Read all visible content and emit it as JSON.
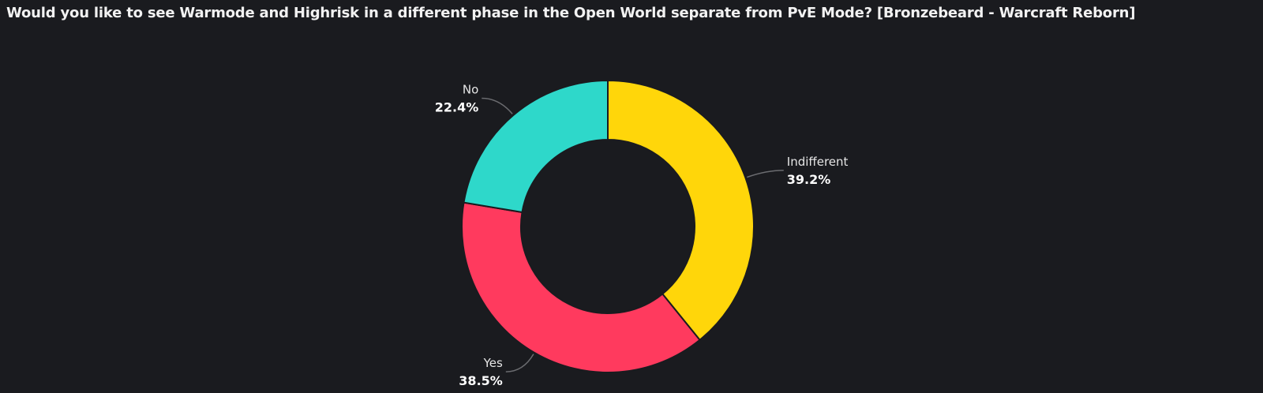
{
  "chart_data": {
    "type": "pie",
    "variant": "donut",
    "title": "Would you like to see Warmode and Highrisk in a different phase in the Open World separate from PvE Mode? [Bronzebeard - Warcraft Reborn]",
    "slices": [
      {
        "label": "Indifferent",
        "value": 39.2,
        "display": "39.2%",
        "color": "#FFD60A"
      },
      {
        "label": "Yes",
        "value": 38.5,
        "display": "38.5%",
        "color": "#FF3A5E"
      },
      {
        "label": "No",
        "value": 22.4,
        "display": "22.4%",
        "color": "#2ED8CA"
      }
    ],
    "background": "#1a1b1f"
  }
}
